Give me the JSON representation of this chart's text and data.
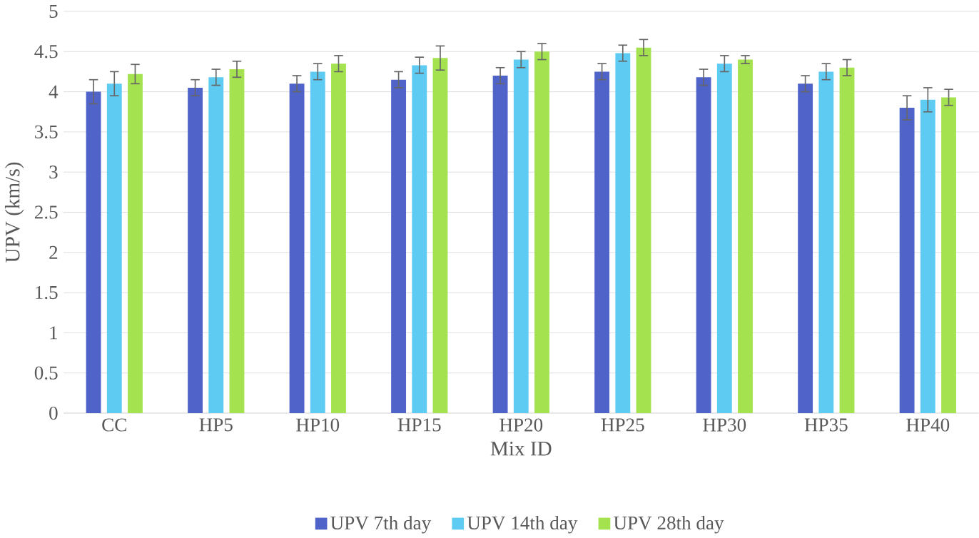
{
  "chart_data": {
    "type": "bar",
    "xlabel": "Mix ID",
    "ylabel": "UPV (km/s)",
    "categories": [
      "CC",
      "HP5",
      "HP10",
      "HP15",
      "HP20",
      "HP25",
      "HP30",
      "HP35",
      "HP40"
    ],
    "series": [
      {
        "name": "UPV 7th day",
        "color": "#4f63c9",
        "values": [
          4.0,
          4.05,
          4.1,
          4.15,
          4.2,
          4.25,
          4.18,
          4.1,
          3.8
        ],
        "errors": [
          0.15,
          0.1,
          0.1,
          0.1,
          0.1,
          0.1,
          0.1,
          0.1,
          0.15
        ]
      },
      {
        "name": "UPV 14th day",
        "color": "#5ecbf3",
        "values": [
          4.1,
          4.18,
          4.25,
          4.33,
          4.4,
          4.48,
          4.35,
          4.25,
          3.9
        ],
        "errors": [
          0.15,
          0.1,
          0.1,
          0.1,
          0.1,
          0.1,
          0.1,
          0.1,
          0.15
        ]
      },
      {
        "name": "UPV 28th day",
        "color": "#a4e34f",
        "values": [
          4.22,
          4.28,
          4.35,
          4.42,
          4.5,
          4.55,
          4.4,
          4.3,
          3.93
        ],
        "errors": [
          0.12,
          0.1,
          0.1,
          0.15,
          0.1,
          0.1,
          0.05,
          0.1,
          0.1
        ]
      }
    ],
    "ylim": [
      0,
      5
    ],
    "yticks": [
      0,
      0.5,
      1,
      1.5,
      2,
      2.5,
      3,
      3.5,
      4,
      4.5,
      5
    ],
    "grid": "y",
    "legend": "bottom"
  }
}
